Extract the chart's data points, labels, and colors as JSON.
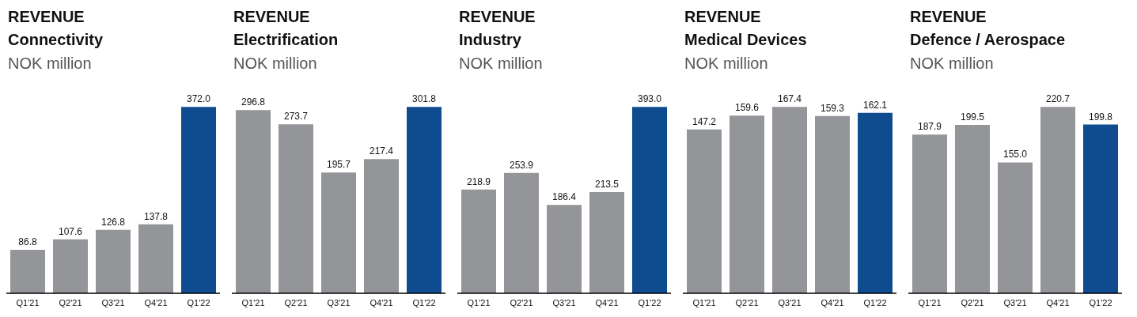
{
  "chart_data": [
    {
      "type": "bar",
      "title": "REVENUE",
      "subtitle": "Connectivity",
      "ylabel": "NOK million",
      "categories": [
        "Q1'21",
        "Q2'21",
        "Q3'21",
        "Q4'21",
        "Q1'22"
      ],
      "values": [
        86.8,
        107.6,
        126.8,
        137.8,
        372.0
      ],
      "value_labels": [
        "86.8",
        "107.6",
        "126.8",
        "137.8",
        "372.0"
      ],
      "colors": [
        "#939598",
        "#939598",
        "#939598",
        "#939598",
        "#0e4c8f"
      ]
    },
    {
      "type": "bar",
      "title": "REVENUE",
      "subtitle": "Electrification",
      "ylabel": "NOK million",
      "categories": [
        "Q1'21",
        "Q2'21",
        "Q3'21",
        "Q4'21",
        "Q1'22"
      ],
      "values": [
        296.8,
        273.7,
        195.7,
        217.4,
        301.8
      ],
      "value_labels": [
        "296.8",
        "273.7",
        "195.7",
        "217.4",
        "301.8"
      ],
      "colors": [
        "#939598",
        "#939598",
        "#939598",
        "#939598",
        "#0e4c8f"
      ]
    },
    {
      "type": "bar",
      "title": "REVENUE",
      "subtitle": "Industry",
      "ylabel": "NOK million",
      "categories": [
        "Q1'21",
        "Q2'21",
        "Q3'21",
        "Q4'21",
        "Q1'22"
      ],
      "values": [
        218.9,
        253.9,
        186.4,
        213.5,
        393.0
      ],
      "value_labels": [
        "218.9",
        "253.9",
        "186.4",
        "213.5",
        "393.0"
      ],
      "colors": [
        "#939598",
        "#939598",
        "#939598",
        "#939598",
        "#0e4c8f"
      ]
    },
    {
      "type": "bar",
      "title": "REVENUE",
      "subtitle": "Medical Devices",
      "ylabel": "NOK million",
      "categories": [
        "Q1'21",
        "Q2'21",
        "Q3'21",
        "Q4'21",
        "Q1'22"
      ],
      "values": [
        147.2,
        159.6,
        167.4,
        159.3,
        162.1
      ],
      "value_labels": [
        "147.2",
        "159.6",
        "167.4",
        "159.3",
        "162.1"
      ],
      "colors": [
        "#939598",
        "#939598",
        "#939598",
        "#939598",
        "#0e4c8f"
      ]
    },
    {
      "type": "bar",
      "title": "REVENUE",
      "subtitle": "Defence / Aerospace",
      "ylabel": "NOK million",
      "categories": [
        "Q1'21",
        "Q2'21",
        "Q3'21",
        "Q4'21",
        "Q1'22"
      ],
      "values": [
        187.9,
        199.5,
        155.0,
        220.7,
        199.8
      ],
      "value_labels": [
        "187.9",
        "199.5",
        "155.0",
        "220.7",
        "199.8"
      ],
      "colors": [
        "#939598",
        "#939598",
        "#939598",
        "#939598",
        "#0e4c8f"
      ]
    }
  ]
}
